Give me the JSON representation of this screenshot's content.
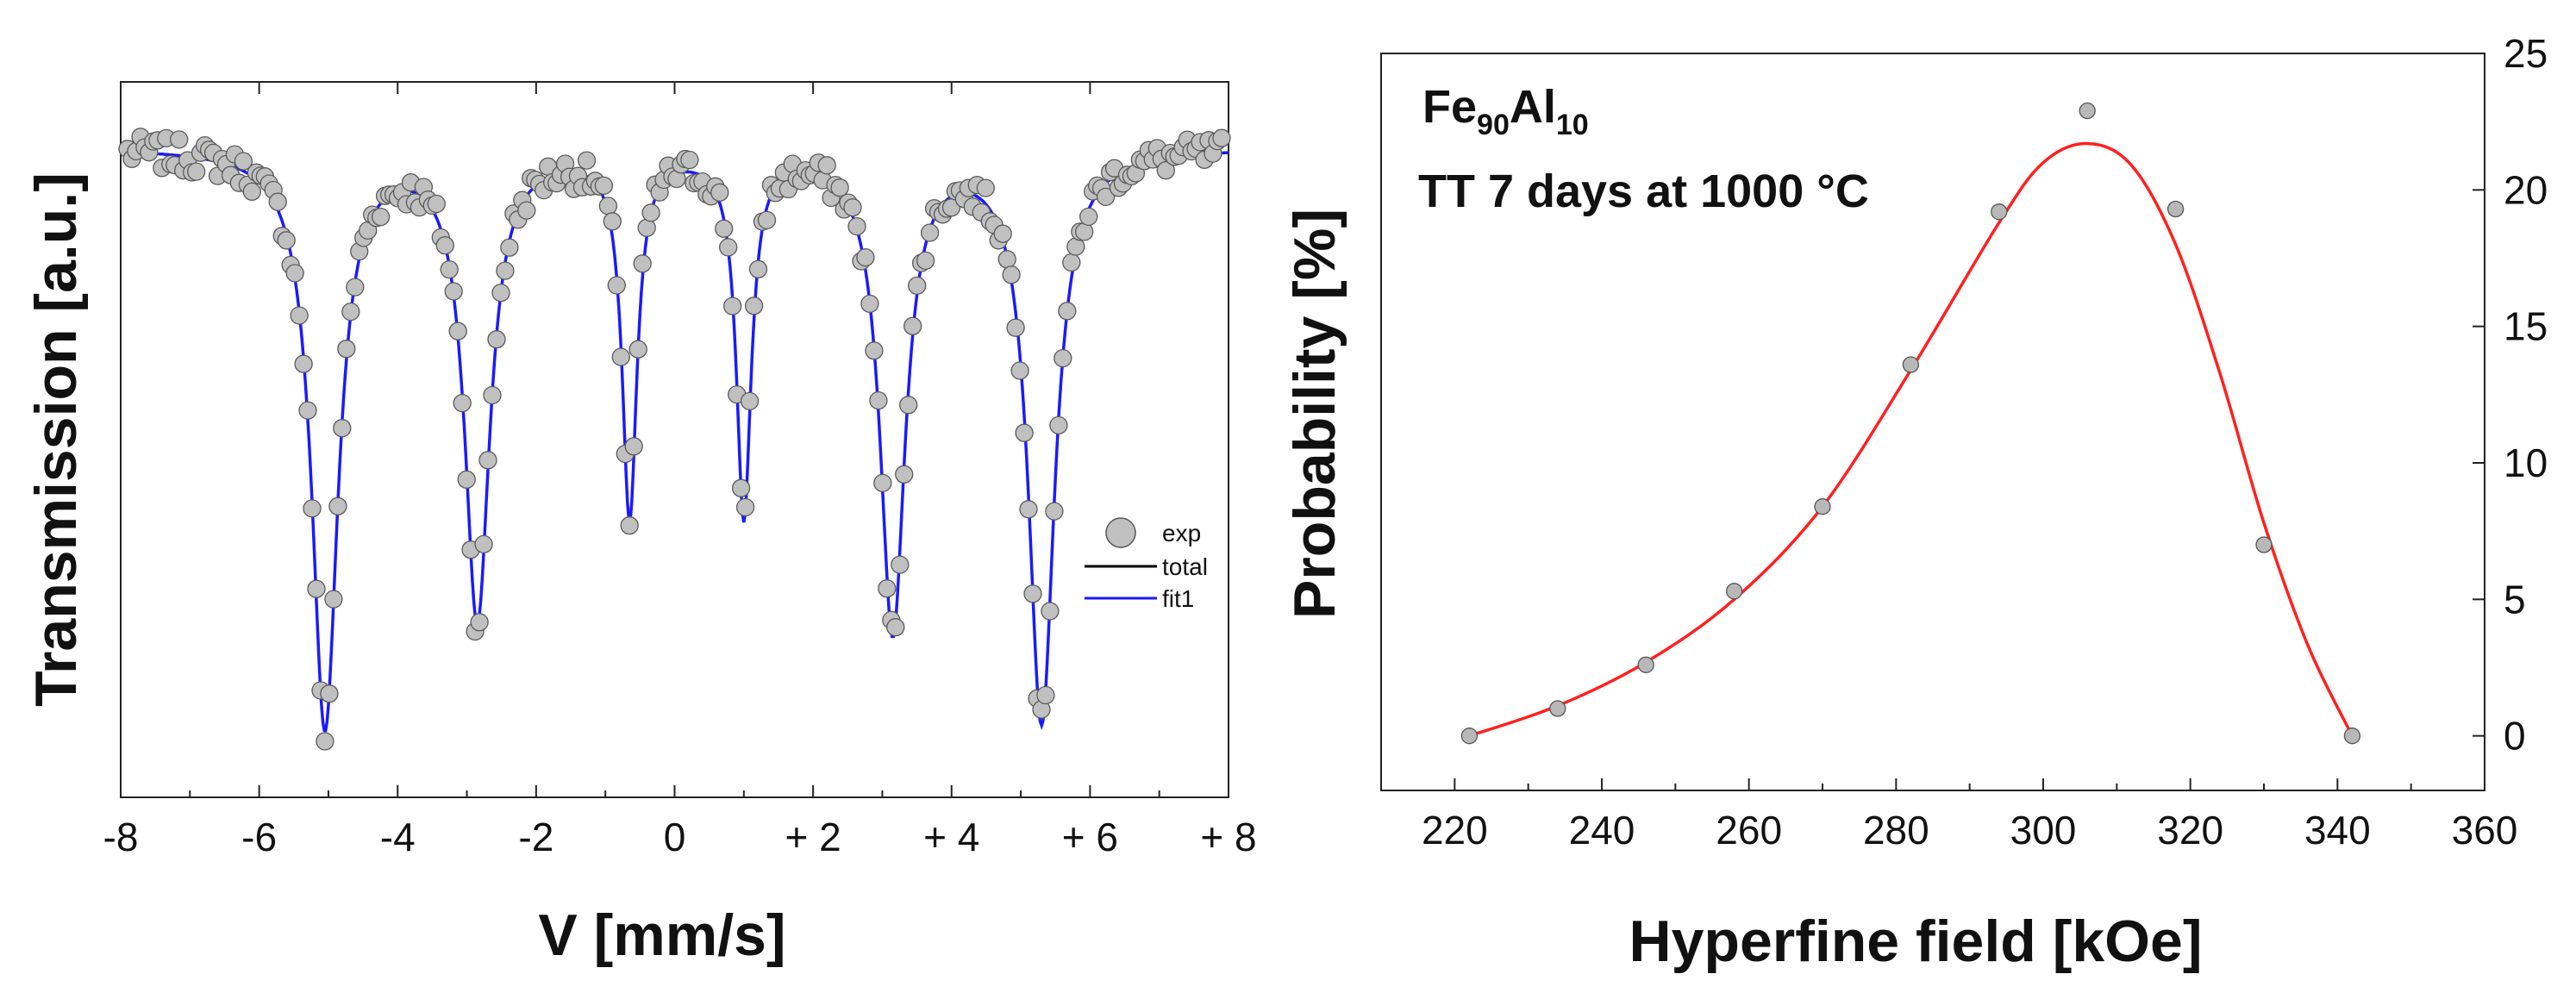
{
  "chart_data": [
    {
      "type": "scatter",
      "title": "",
      "xlabel": "V [mm/s]",
      "ylabel": "Transmission [a.u.]",
      "xlim": [
        -8,
        8
      ],
      "ylim": [
        0,
        1.1
      ],
      "x_ticks": [
        -8,
        -6,
        -4,
        -2,
        0,
        2,
        4,
        6,
        8
      ],
      "x_tick_labels": [
        "-8",
        "-6",
        "-4",
        "-2",
        "0",
        "+ 2",
        "+ 4",
        "+ 6",
        "+ 8"
      ],
      "baseline": 1.0,
      "sextet_lines": [
        {
          "position": -5.05,
          "depth": 0.89,
          "width": 0.46
        },
        {
          "position": -2.85,
          "depth": 0.72,
          "width": 0.44
        },
        {
          "position": -0.65,
          "depth": 0.56,
          "width": 0.26
        },
        {
          "position": 1.0,
          "depth": 0.56,
          "width": 0.26
        },
        {
          "position": 3.15,
          "depth": 0.74,
          "width": 0.44
        },
        {
          "position": 5.3,
          "depth": 0.88,
          "width": 0.46
        }
      ],
      "series": [
        {
          "name": "exp",
          "kind": "markers",
          "color": "#c0c0c0"
        },
        {
          "name": "total",
          "kind": "line",
          "color": "#000000"
        },
        {
          "name": "fit1",
          "kind": "line",
          "color": "#1a1aff"
        }
      ],
      "legend": {
        "position": "right-middle",
        "entries": [
          "exp",
          "total",
          "fit1"
        ]
      }
    },
    {
      "type": "scatter",
      "title": "",
      "xlabel": "Hyperfine field [kOe]",
      "ylabel": "Probability [%]",
      "xlim": [
        210,
        360
      ],
      "ylim": [
        -2,
        25
      ],
      "x_ticks": [
        220,
        240,
        260,
        280,
        300,
        320,
        340,
        360
      ],
      "x_tick_labels": [
        "220",
        "240",
        "260",
        "280",
        "300",
        "320",
        "340",
        "360"
      ],
      "y_ticks": [
        0,
        5,
        10,
        15,
        20,
        25
      ],
      "y_tick_labels": [
        "0",
        "5",
        "10",
        "15",
        "20",
        "25"
      ],
      "points": {
        "x": [
          222,
          234,
          246,
          258,
          270,
          282,
          294,
          306,
          318,
          330,
          342
        ],
        "y": [
          0.0,
          1.0,
          2.6,
          5.3,
          8.4,
          13.6,
          19.2,
          22.9,
          19.3,
          7.0,
          0.0
        ]
      },
      "fit_curve": {
        "color": "#ff2020",
        "x": [
          222,
          234,
          246,
          258,
          270,
          282,
          294,
          300,
          306,
          312,
          318,
          324,
          330,
          336,
          342
        ],
        "y": [
          0.0,
          1.1,
          2.7,
          5.0,
          8.4,
          13.4,
          18.8,
          21.0,
          21.7,
          20.9,
          18.0,
          13.3,
          7.8,
          3.3,
          0.0
        ]
      },
      "annotations": [
        "TT  7 days at 1000 °C"
      ],
      "sample_label": {
        "element1": "Fe",
        "sub1": "90",
        "element2": "Al",
        "sub2": "10"
      }
    }
  ]
}
